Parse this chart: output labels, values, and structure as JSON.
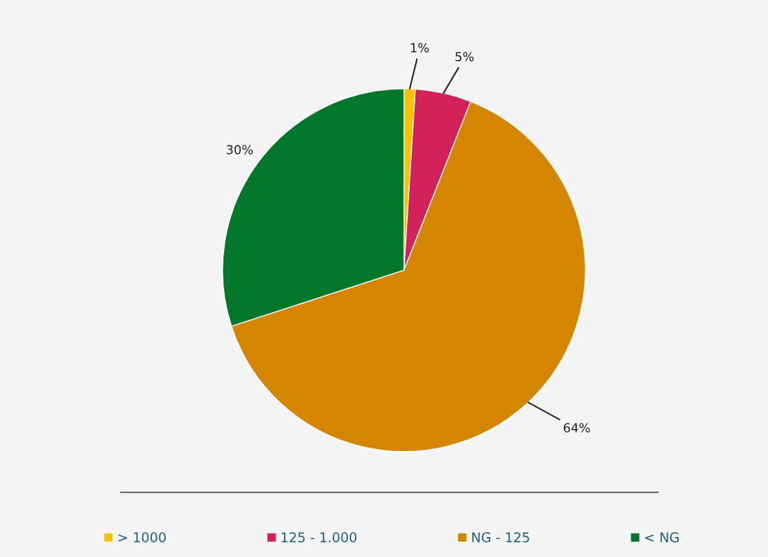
{
  "chart_data": {
    "type": "pie",
    "categories": [
      "> 1000",
      "125 - 1.000",
      "NG - 125",
      "< NG"
    ],
    "values": [
      1,
      5,
      64,
      30
    ],
    "colors": [
      "#fcc000",
      "#d3215b",
      "#d48600",
      "#00772b"
    ],
    "value_labels": [
      "1%",
      "5%",
      "64%",
      "30%"
    ],
    "legend": "bottom"
  }
}
